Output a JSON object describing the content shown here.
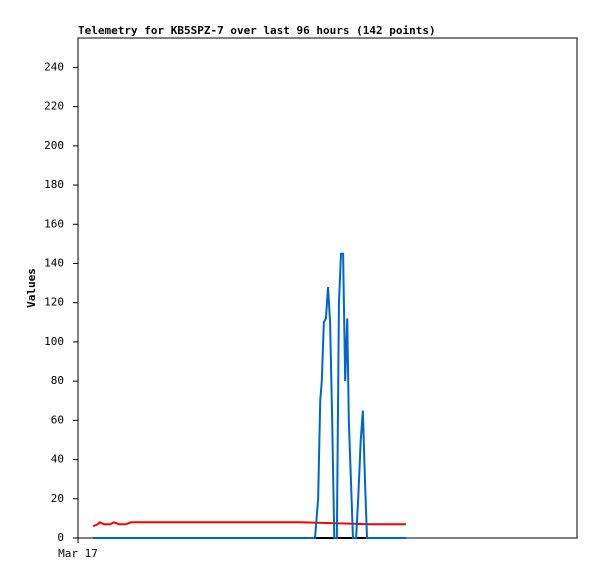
{
  "chart_data": {
    "type": "line",
    "title": "Telemetry for KB5SPZ-7 over last 96 hours (142 points)",
    "ylabel": "Values",
    "xlim": [
      0,
      96
    ],
    "xticks": [
      {
        "value": 0,
        "label": "Mar 17"
      }
    ],
    "ylim": [
      0,
      255
    ],
    "yticks": [
      0,
      20,
      40,
      60,
      80,
      100,
      120,
      140,
      160,
      180,
      200,
      220,
      240
    ],
    "series": [
      {
        "color": "#000000",
        "x": [
          2.9,
          63.1
        ],
        "values": [
          0,
          0
        ]
      },
      {
        "color": "#ff0000",
        "x": [
          2.9,
          3.8,
          4.2,
          5.0,
          6.2,
          6.9,
          7.9,
          9.2,
          10.2,
          42.7,
          56.2,
          63.1
        ],
        "values": [
          6,
          7,
          8,
          7,
          7,
          8,
          7,
          7,
          8,
          8,
          7,
          7
        ]
      },
      {
        "color": "#0066cc",
        "x": [
          2.9,
          45.6,
          46.2,
          46.6,
          46.9,
          47.3,
          47.7,
          48.1,
          48.5,
          48.9,
          49.3,
          49.8,
          50.2,
          50.6,
          51.0,
          51.4,
          51.8,
          52.1,
          52.5,
          52.9,
          53.5,
          53.9,
          54.4,
          54.8,
          55.2,
          55.6,
          63.1
        ],
        "values": [
          0,
          0,
          20,
          70,
          80,
          110,
          112,
          128,
          110,
          60,
          0,
          0,
          120,
          145,
          145,
          80,
          112,
          60,
          30,
          0,
          0,
          20,
          50,
          65,
          30,
          0,
          0
        ]
      }
    ]
  }
}
